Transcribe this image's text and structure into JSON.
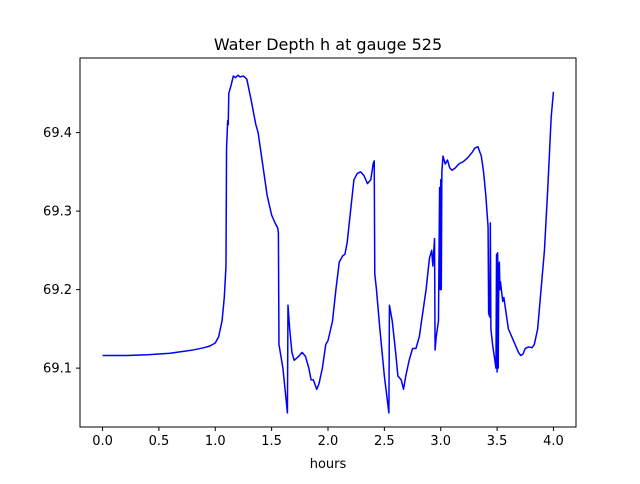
{
  "chart_data": {
    "type": "line",
    "title": "Water Depth h at gauge 525",
    "xlabel": "hours",
    "ylabel": "",
    "xlim": [
      -0.2,
      4.2
    ],
    "ylim": [
      69.025,
      69.495
    ],
    "xticks": [
      0.0,
      0.5,
      1.0,
      1.5,
      2.0,
      2.5,
      3.0,
      3.5,
      4.0
    ],
    "xtick_labels": [
      "0.0",
      "0.5",
      "1.0",
      "1.5",
      "2.0",
      "2.5",
      "3.0",
      "3.5",
      "4.0"
    ],
    "yticks": [
      69.1,
      69.2,
      69.3,
      69.4
    ],
    "ytick_labels": [
      "69.1",
      "69.2",
      "69.3",
      "69.4"
    ],
    "grid": false,
    "legend": "none",
    "series": [
      {
        "color": "#0000ff",
        "points": [
          [
            0.0,
            69.116
          ],
          [
            0.2,
            69.116
          ],
          [
            0.4,
            69.117
          ],
          [
            0.6,
            69.119
          ],
          [
            0.7,
            69.121
          ],
          [
            0.8,
            69.123
          ],
          [
            0.9,
            69.126
          ],
          [
            0.95,
            69.128
          ],
          [
            1.0,
            69.132
          ],
          [
            1.03,
            69.14
          ],
          [
            1.06,
            69.16
          ],
          [
            1.08,
            69.19
          ],
          [
            1.095,
            69.23
          ],
          [
            1.1,
            69.38
          ],
          [
            1.11,
            69.415
          ],
          [
            1.115,
            69.41
          ],
          [
            1.12,
            69.45
          ],
          [
            1.14,
            69.46
          ],
          [
            1.16,
            69.472
          ],
          [
            1.18,
            69.47
          ],
          [
            1.2,
            69.473
          ],
          [
            1.22,
            69.471
          ],
          [
            1.25,
            69.472
          ],
          [
            1.28,
            69.468
          ],
          [
            1.32,
            69.44
          ],
          [
            1.36,
            69.41
          ],
          [
            1.38,
            69.4
          ],
          [
            1.42,
            69.36
          ],
          [
            1.46,
            69.32
          ],
          [
            1.5,
            69.295
          ],
          [
            1.53,
            69.285
          ],
          [
            1.555,
            69.278
          ],
          [
            1.56,
            69.272
          ],
          [
            1.565,
            69.13
          ],
          [
            1.6,
            69.1
          ],
          [
            1.64,
            69.043
          ],
          [
            1.645,
            69.18
          ],
          [
            1.66,
            69.15
          ],
          [
            1.68,
            69.12
          ],
          [
            1.7,
            69.11
          ],
          [
            1.74,
            69.115
          ],
          [
            1.77,
            69.12
          ],
          [
            1.8,
            69.115
          ],
          [
            1.83,
            69.1
          ],
          [
            1.85,
            69.085
          ],
          [
            1.87,
            69.085
          ],
          [
            1.9,
            69.073
          ],
          [
            1.92,
            69.08
          ],
          [
            1.95,
            69.1
          ],
          [
            1.98,
            69.13
          ],
          [
            2.0,
            69.135
          ],
          [
            2.04,
            69.16
          ],
          [
            2.07,
            69.2
          ],
          [
            2.1,
            69.235
          ],
          [
            2.13,
            69.243
          ],
          [
            2.15,
            69.245
          ],
          [
            2.17,
            69.26
          ],
          [
            2.2,
            69.3
          ],
          [
            2.23,
            69.34
          ],
          [
            2.26,
            69.348
          ],
          [
            2.29,
            69.35
          ],
          [
            2.32,
            69.345
          ],
          [
            2.35,
            69.335
          ],
          [
            2.38,
            69.34
          ],
          [
            2.4,
            69.36
          ],
          [
            2.41,
            69.364
          ],
          [
            2.415,
            69.22
          ],
          [
            2.43,
            69.2
          ],
          [
            2.46,
            69.15
          ],
          [
            2.5,
            69.09
          ],
          [
            2.54,
            69.043
          ],
          [
            2.545,
            69.18
          ],
          [
            2.57,
            69.16
          ],
          [
            2.6,
            69.12
          ],
          [
            2.62,
            69.09
          ],
          [
            2.65,
            69.085
          ],
          [
            2.67,
            69.073
          ],
          [
            2.69,
            69.09
          ],
          [
            2.72,
            69.11
          ],
          [
            2.75,
            69.125
          ],
          [
            2.78,
            69.125
          ],
          [
            2.81,
            69.14
          ],
          [
            2.84,
            69.17
          ],
          [
            2.87,
            69.2
          ],
          [
            2.9,
            69.24
          ],
          [
            2.92,
            69.25
          ],
          [
            2.93,
            69.23
          ],
          [
            2.945,
            69.265
          ],
          [
            2.95,
            69.123
          ],
          [
            2.96,
            69.14
          ],
          [
            2.98,
            69.16
          ],
          [
            2.99,
            69.33
          ],
          [
            2.995,
            69.2
          ],
          [
            3.0,
            69.34
          ],
          [
            3.005,
            69.2
          ],
          [
            3.01,
            69.35
          ],
          [
            3.02,
            69.37
          ],
          [
            3.04,
            69.36
          ],
          [
            3.06,
            69.365
          ],
          [
            3.08,
            69.355
          ],
          [
            3.1,
            69.352
          ],
          [
            3.13,
            69.355
          ],
          [
            3.16,
            69.36
          ],
          [
            3.2,
            69.363
          ],
          [
            3.24,
            69.368
          ],
          [
            3.28,
            69.375
          ],
          [
            3.3,
            69.38
          ],
          [
            3.33,
            69.382
          ],
          [
            3.36,
            69.37
          ],
          [
            3.38,
            69.35
          ],
          [
            3.4,
            69.32
          ],
          [
            3.42,
            69.28
          ],
          [
            3.425,
            69.17
          ],
          [
            3.435,
            69.165
          ],
          [
            3.44,
            69.285
          ],
          [
            3.445,
            69.15
          ],
          [
            3.46,
            69.13
          ],
          [
            3.48,
            69.11
          ],
          [
            3.49,
            69.1
          ],
          [
            3.495,
            69.245
          ],
          [
            3.5,
            69.095
          ],
          [
            3.505,
            69.247
          ],
          [
            3.51,
            69.1
          ],
          [
            3.515,
            69.22
          ],
          [
            3.52,
            69.235
          ],
          [
            3.525,
            69.2
          ],
          [
            3.53,
            69.21
          ],
          [
            3.55,
            69.185
          ],
          [
            3.56,
            69.19
          ],
          [
            3.58,
            69.17
          ],
          [
            3.6,
            69.15
          ],
          [
            3.63,
            69.14
          ],
          [
            3.66,
            69.13
          ],
          [
            3.69,
            69.12
          ],
          [
            3.71,
            69.116
          ],
          [
            3.73,
            69.118
          ],
          [
            3.75,
            69.125
          ],
          [
            3.78,
            69.127
          ],
          [
            3.81,
            69.126
          ],
          [
            3.83,
            69.13
          ],
          [
            3.86,
            69.15
          ],
          [
            3.89,
            69.2
          ],
          [
            3.92,
            69.25
          ],
          [
            3.95,
            69.33
          ],
          [
            3.98,
            69.42
          ],
          [
            4.0,
            69.452
          ]
        ]
      }
    ]
  }
}
